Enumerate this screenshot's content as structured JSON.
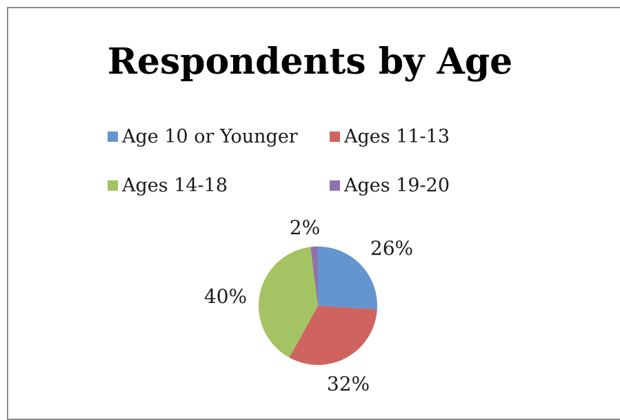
{
  "chart_data": {
    "type": "pie",
    "title": "Respondents by Age",
    "categories": [
      "Age 10 or Younger",
      "Ages 11-13",
      "Ages 14-18",
      "Ages 19-20"
    ],
    "values": [
      26,
      32,
      40,
      2
    ],
    "data_labels": [
      "26%",
      "32%",
      "40%",
      "2%"
    ],
    "colors": [
      "#6495cf",
      "#cf6360",
      "#a4c362",
      "#8d73ab"
    ],
    "legend_position": "top",
    "start_angle": "12 o'clock, clockwise"
  }
}
